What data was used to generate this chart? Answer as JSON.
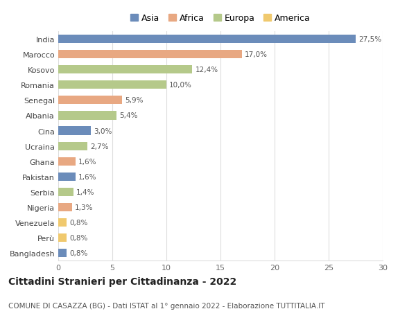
{
  "countries": [
    "India",
    "Marocco",
    "Kosovo",
    "Romania",
    "Senegal",
    "Albania",
    "Cina",
    "Ucraina",
    "Ghana",
    "Pakistan",
    "Serbia",
    "Nigeria",
    "Venezuela",
    "Perù",
    "Bangladesh"
  ],
  "values": [
    27.5,
    17.0,
    12.4,
    10.0,
    5.9,
    5.4,
    3.0,
    2.7,
    1.6,
    1.6,
    1.4,
    1.3,
    0.8,
    0.8,
    0.8
  ],
  "labels": [
    "27,5%",
    "17,0%",
    "12,4%",
    "10,0%",
    "5,9%",
    "5,4%",
    "3,0%",
    "2,7%",
    "1,6%",
    "1,6%",
    "1,4%",
    "1,3%",
    "0,8%",
    "0,8%",
    "0,8%"
  ],
  "continents": [
    "Asia",
    "Africa",
    "Europa",
    "Europa",
    "Africa",
    "Europa",
    "Asia",
    "Europa",
    "Africa",
    "Asia",
    "Europa",
    "Africa",
    "America",
    "America",
    "Asia"
  ],
  "continent_colors": {
    "Asia": "#6b8cba",
    "Africa": "#e8a882",
    "Europa": "#b5c98a",
    "America": "#f0c96e"
  },
  "legend_order": [
    "Asia",
    "Africa",
    "Europa",
    "America"
  ],
  "title": "Cittadini Stranieri per Cittadinanza - 2022",
  "subtitle": "COMUNE DI CASAZZA (BG) - Dati ISTAT al 1° gennaio 2022 - Elaborazione TUTTITALIA.IT",
  "xlim": [
    0,
    30
  ],
  "xticks": [
    0,
    5,
    10,
    15,
    20,
    25,
    30
  ],
  "background_color": "#ffffff",
  "bar_height": 0.55,
  "grid_color": "#dddddd",
  "title_fontsize": 10,
  "subtitle_fontsize": 7.5,
  "label_fontsize": 7.5,
  "tick_fontsize": 8,
  "legend_fontsize": 9
}
